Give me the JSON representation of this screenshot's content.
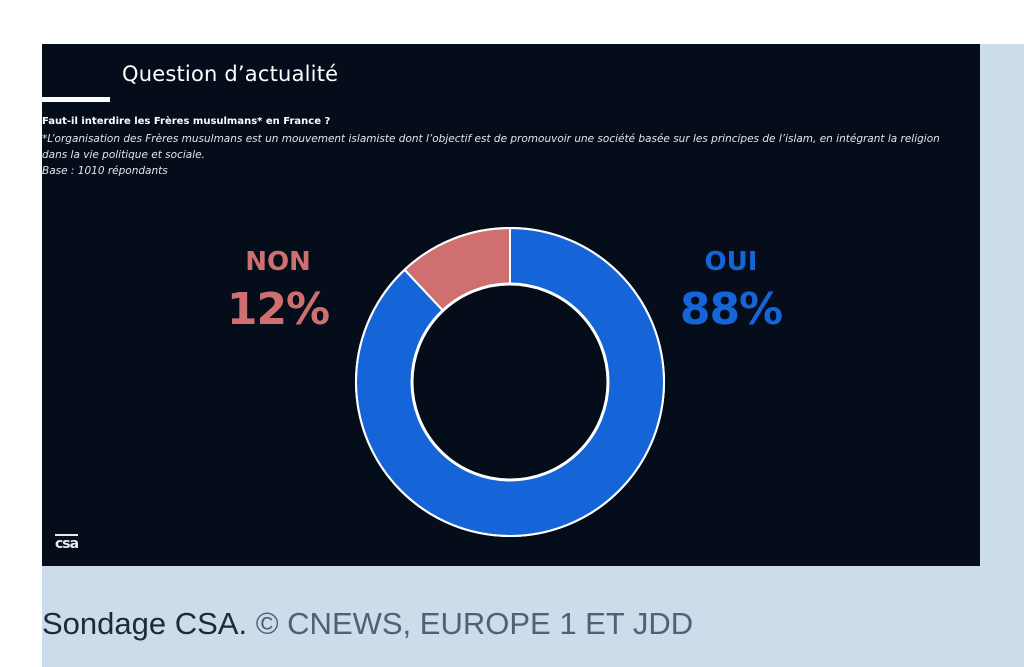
{
  "slide": {
    "title": "Question d’actualité",
    "question": "Faut-il interdire les Frères musulmans* en France ?",
    "footnote": "*L’organisation des Frères musulmans est un mouvement islamiste dont l’objectif est de promouvoir une société basée sur les principes de l’islam, en intégrant la religion dans la vie politique et sociale.",
    "base": "Base : 1010 répondants",
    "logo": "csa"
  },
  "caption": {
    "main": "Sondage CSA.",
    "credit": "© CNEWS, EUROPE 1 ET JDD"
  },
  "colors": {
    "slide_background": "#050d1a",
    "oui": "#1565d8",
    "non": "#cf6f6f",
    "caption_panel": "#cddceb"
  },
  "chart_data": {
    "type": "pie",
    "donut": true,
    "labels": [
      "OUI",
      "NON"
    ],
    "values": [
      88,
      12
    ],
    "value_labels": [
      "88%",
      "12%"
    ],
    "colors": [
      "#1565d8",
      "#cf6f6f"
    ]
  }
}
